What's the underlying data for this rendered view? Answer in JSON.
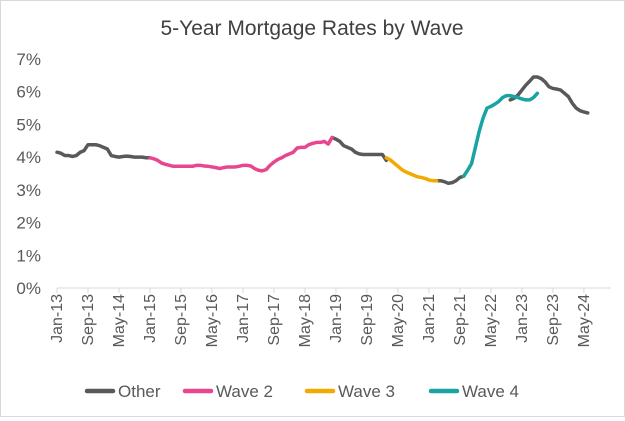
{
  "chart_data": {
    "type": "line",
    "title": "5-Year Mortgage Rates by Wave",
    "xlabel": "",
    "ylabel": "",
    "ylim": [
      0,
      7
    ],
    "y_ticks": [
      "0%",
      "1%",
      "2%",
      "3%",
      "4%",
      "5%",
      "6%",
      "7%"
    ],
    "x_tick_labels": [
      "Jan-13",
      "Sep-13",
      "May-14",
      "Jan-15",
      "Sep-15",
      "May-16",
      "Jan-17",
      "Sep-17",
      "May-18",
      "Jan-19",
      "Sep-19",
      "May-20",
      "Jan-21",
      "Sep-21",
      "May-22",
      "Jan-23",
      "Sep-23",
      "May-24"
    ],
    "x_start": "Jan-13",
    "x_end": "Dec-24",
    "series": [
      {
        "name": "Other",
        "color": "#595959",
        "segments": [
          [
            [
              0,
              4.15
            ],
            [
              1,
              4.12
            ],
            [
              2,
              4.05
            ],
            [
              3,
              4.05
            ],
            [
              4,
              4.02
            ],
            [
              5,
              4.05
            ],
            [
              6,
              4.15
            ],
            [
              7,
              4.2
            ],
            [
              8,
              4.38
            ],
            [
              9,
              4.38
            ],
            [
              10,
              4.38
            ],
            [
              11,
              4.35
            ],
            [
              12,
              4.3
            ],
            [
              13,
              4.25
            ],
            [
              14,
              4.05
            ],
            [
              15,
              4.02
            ],
            [
              16,
              4.0
            ],
            [
              17,
              4.02
            ],
            [
              18,
              4.03
            ],
            [
              19,
              4.02
            ],
            [
              20,
              4.0
            ],
            [
              21,
              4.0
            ],
            [
              22,
              4.0
            ],
            [
              23,
              3.98
            ],
            [
              24,
              3.98
            ]
          ],
          [
            [
              71,
              4.6
            ],
            [
              72,
              4.55
            ],
            [
              73,
              4.48
            ],
            [
              74,
              4.35
            ],
            [
              75,
              4.3
            ],
            [
              76,
              4.25
            ],
            [
              77,
              4.15
            ],
            [
              78,
              4.1
            ],
            [
              79,
              4.08
            ],
            [
              80,
              4.08
            ],
            [
              81,
              4.08
            ],
            [
              82,
              4.08
            ],
            [
              83,
              4.08
            ],
            [
              84,
              4.08
            ],
            [
              85,
              3.9
            ]
          ],
          [
            [
              98,
              3.28
            ],
            [
              99,
              3.28
            ],
            [
              100,
              3.25
            ],
            [
              101,
              3.2
            ],
            [
              102,
              3.22
            ],
            [
              103,
              3.28
            ],
            [
              104,
              3.38
            ],
            [
              105,
              3.42
            ]
          ],
          [
            [
              117,
              5.75
            ],
            [
              118,
              5.8
            ],
            [
              119,
              5.9
            ],
            [
              120,
              6.05
            ],
            [
              121,
              6.2
            ],
            [
              122,
              6.32
            ],
            [
              123,
              6.45
            ],
            [
              124,
              6.45
            ],
            [
              125,
              6.4
            ],
            [
              126,
              6.3
            ],
            [
              127,
              6.15
            ],
            [
              128,
              6.1
            ],
            [
              129,
              6.08
            ],
            [
              130,
              6.05
            ],
            [
              131,
              5.95
            ],
            [
              132,
              5.85
            ],
            [
              133,
              5.65
            ],
            [
              134,
              5.5
            ],
            [
              135,
              5.42
            ],
            [
              136,
              5.38
            ],
            [
              137,
              5.35
            ]
          ]
        ]
      },
      {
        "name": "Wave 2",
        "color": "#e8468f",
        "segments": [
          [
            [
              24,
              3.98
            ],
            [
              25,
              3.95
            ],
            [
              26,
              3.9
            ],
            [
              27,
              3.82
            ],
            [
              28,
              3.78
            ],
            [
              29,
              3.75
            ],
            [
              30,
              3.72
            ],
            [
              31,
              3.72
            ],
            [
              32,
              3.72
            ],
            [
              33,
              3.72
            ],
            [
              34,
              3.72
            ],
            [
              35,
              3.72
            ],
            [
              36,
              3.75
            ],
            [
              37,
              3.75
            ],
            [
              38,
              3.73
            ],
            [
              39,
              3.72
            ],
            [
              40,
              3.7
            ],
            [
              41,
              3.68
            ],
            [
              42,
              3.65
            ],
            [
              43,
              3.68
            ],
            [
              44,
              3.7
            ],
            [
              45,
              3.7
            ],
            [
              46,
              3.7
            ],
            [
              47,
              3.72
            ],
            [
              48,
              3.75
            ],
            [
              49,
              3.75
            ],
            [
              50,
              3.73
            ],
            [
              51,
              3.65
            ],
            [
              52,
              3.6
            ],
            [
              53,
              3.58
            ],
            [
              54,
              3.62
            ],
            [
              55,
              3.75
            ],
            [
              56,
              3.85
            ],
            [
              57,
              3.93
            ],
            [
              58,
              3.98
            ],
            [
              59,
              4.05
            ],
            [
              60,
              4.1
            ],
            [
              61,
              4.15
            ],
            [
              62,
              4.28
            ],
            [
              63,
              4.3
            ],
            [
              64,
              4.3
            ],
            [
              65,
              4.38
            ],
            [
              66,
              4.42
            ],
            [
              67,
              4.45
            ],
            [
              68,
              4.45
            ],
            [
              69,
              4.48
            ],
            [
              70,
              4.4
            ],
            [
              71,
              4.6
            ]
          ]
        ]
      },
      {
        "name": "Wave 3",
        "color": "#f2a900",
        "segments": [
          [
            [
              85,
              3.98
            ],
            [
              86,
              3.92
            ],
            [
              87,
              3.82
            ],
            [
              88,
              3.72
            ],
            [
              89,
              3.62
            ],
            [
              90,
              3.55
            ],
            [
              91,
              3.5
            ],
            [
              92,
              3.45
            ],
            [
              93,
              3.4
            ],
            [
              94,
              3.38
            ],
            [
              95,
              3.35
            ],
            [
              96,
              3.3
            ],
            [
              97,
              3.28
            ],
            [
              98,
              3.28
            ]
          ]
        ]
      },
      {
        "name": "Wave 4",
        "color": "#1aa3a3",
        "segments": [
          [
            [
              105,
              3.42
            ],
            [
              106,
              3.6
            ],
            [
              107,
              3.8
            ],
            [
              108,
              4.3
            ],
            [
              109,
              4.8
            ],
            [
              110,
              5.2
            ],
            [
              111,
              5.5
            ],
            [
              112,
              5.55
            ],
            [
              113,
              5.62
            ],
            [
              114,
              5.7
            ],
            [
              115,
              5.82
            ],
            [
              116,
              5.88
            ],
            [
              117,
              5.88
            ],
            [
              118,
              5.85
            ],
            [
              119,
              5.82
            ],
            [
              120,
              5.78
            ],
            [
              121,
              5.75
            ],
            [
              122,
              5.75
            ],
            [
              123,
              5.82
            ],
            [
              124,
              5.95
            ]
          ]
        ]
      }
    ],
    "legend": {
      "position": "bottom",
      "entries": [
        "Other",
        "Wave 2",
        "Wave 3",
        "Wave 4"
      ]
    },
    "grid": false
  }
}
